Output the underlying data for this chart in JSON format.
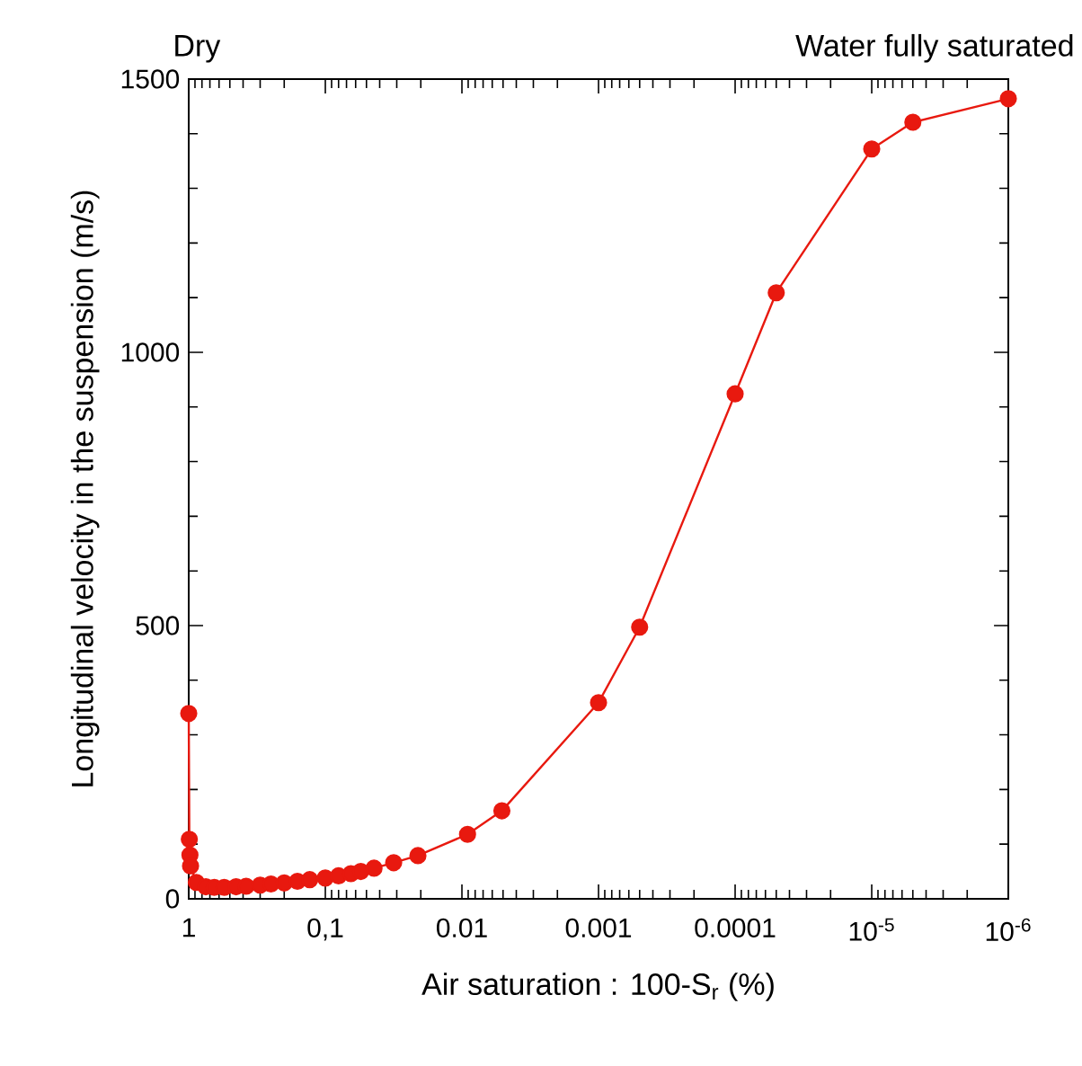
{
  "chart_data": {
    "type": "line",
    "xlabel": "Air saturation : 100-S$_{r}$ (%)",
    "ylabel": "Longitudinal velocity in the suspension (m/s)",
    "annotations": [
      "Dry",
      "Water fully saturated"
    ],
    "x": [
      1,
      0.99,
      0.98,
      0.97,
      0.88,
      0.75,
      0.65,
      0.55,
      0.45,
      0.38,
      0.3,
      0.25,
      0.2,
      0.16,
      0.13,
      0.1,
      0.08,
      0.065,
      0.055,
      0.044,
      0.0316,
      0.021,
      0.0091,
      0.0051,
      0.001,
      0.0005,
      0.0001,
      5e-05,
      1e-05,
      5e-06,
      1e-06
    ],
    "values": [
      339,
      109,
      80,
      60,
      30,
      22,
      21,
      21,
      22,
      23,
      25,
      27,
      29,
      32,
      35,
      38,
      42,
      46,
      50,
      56,
      66,
      79,
      118,
      161,
      359,
      497,
      924,
      1109,
      1372,
      1421,
      1464
    ],
    "color": "#e8190f",
    "marker": "circle",
    "line_style": "solid",
    "log": "x",
    "xlim": [
      1,
      1e-06
    ],
    "ylim": [
      0,
      1500
    ],
    "xticks": [
      1,
      {
        "value": 0.1,
        "label": "0,1"
      },
      0.01,
      0.001,
      0.0001,
      {
        "value": 1e-05,
        "label": "10$^{-5}$"
      },
      {
        "value": 1e-06,
        "label": "10$^{-6}$"
      }
    ],
    "yticks": [
      0,
      500,
      1000,
      1500
    ]
  }
}
